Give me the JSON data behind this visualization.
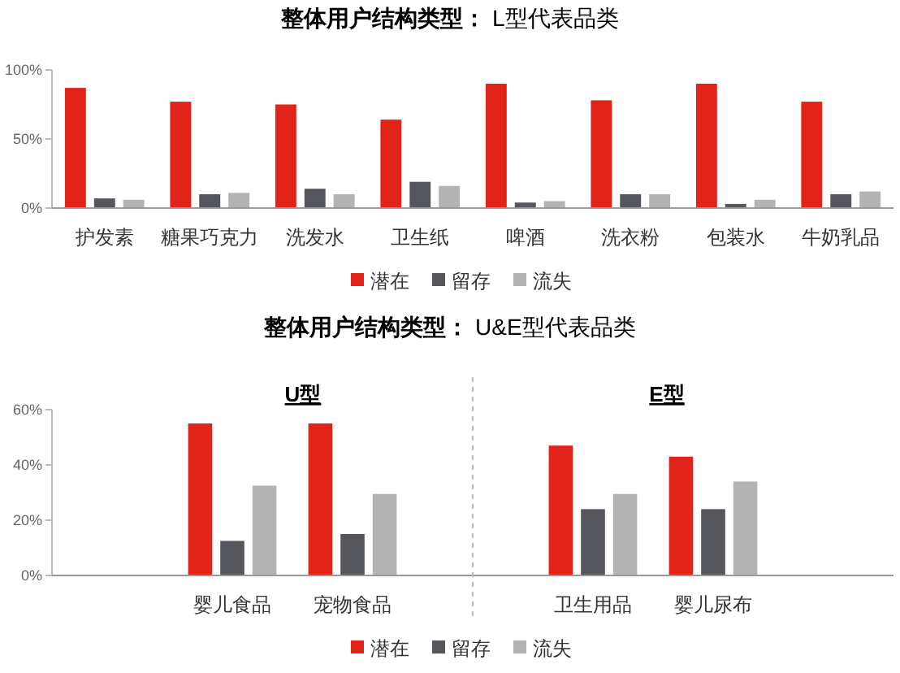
{
  "chart_data": [
    {
      "type": "bar",
      "title": "整体用户结构类型： L型代表品类",
      "categories": [
        "护发素",
        "糖果巧克力",
        "洗发水",
        "卫生纸",
        "啤酒",
        "洗衣粉",
        "包装水",
        "牛奶乳品"
      ],
      "series": [
        {
          "name": "潜在",
          "color": "#e2231a",
          "values": [
            87,
            77,
            75,
            64,
            90,
            78,
            90,
            77
          ]
        },
        {
          "name": "留存",
          "color": "#54565b",
          "values": [
            7,
            10,
            14,
            19,
            4,
            10,
            3,
            10
          ]
        },
        {
          "name": "流失",
          "color": "#b3b3b3",
          "values": [
            6,
            11,
            10,
            16,
            5,
            10,
            6,
            12
          ]
        }
      ],
      "ylim": [
        0,
        100
      ],
      "yticks": [
        {
          "value": 0,
          "label": "0%"
        },
        {
          "value": 50,
          "label": "50%"
        },
        {
          "value": 100,
          "label": "100%"
        }
      ],
      "grid": false,
      "legend": "bottom"
    },
    {
      "type": "bar",
      "title": "整体用户结构类型： U&E型代表品类",
      "categories": [
        null,
        "婴儿食品",
        "宠物食品",
        null,
        "卫生用品",
        "婴儿尿布",
        null
      ],
      "series": [
        {
          "name": "潜在",
          "color": "#e2231a",
          "values": [
            null,
            55,
            55,
            null,
            47,
            43,
            null
          ]
        },
        {
          "name": "留存",
          "color": "#54565b",
          "values": [
            null,
            12.5,
            15,
            null,
            24,
            24,
            null
          ]
        },
        {
          "name": "流失",
          "color": "#b3b3b3",
          "values": [
            null,
            32.5,
            29.5,
            null,
            29.5,
            34,
            null
          ]
        }
      ],
      "annotations": [
        "U型",
        "E型"
      ],
      "ylim": [
        0,
        60
      ],
      "yticks": [
        {
          "value": 0,
          "label": "0%"
        },
        {
          "value": 20,
          "label": "20%"
        },
        {
          "value": 40,
          "label": "40%"
        },
        {
          "value": 60,
          "label": "60%"
        }
      ],
      "legend": "bottom"
    }
  ]
}
